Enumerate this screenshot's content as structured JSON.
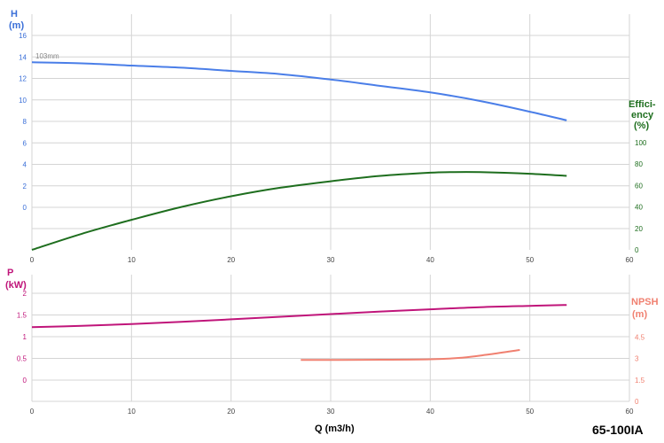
{
  "model_label": "65-100IA",
  "colors": {
    "head": "#4a7ee8",
    "efficiency": "#1e6e1e",
    "power": "#c0157a",
    "npsh": "#f08070",
    "grid": "#d4d4d4",
    "tick": "#444444"
  },
  "chart_data": [
    {
      "type": "line",
      "grid": true,
      "x_ticks": [
        "0",
        "10",
        "20",
        "30",
        "40",
        "50",
        "60"
      ],
      "xlim": [
        0,
        60
      ],
      "left_axis": {
        "label_line1": "H",
        "label_line2": "(m)",
        "ylim": [
          -4,
          16
        ],
        "ticks": [
          "0",
          "2",
          "4",
          "6",
          "8",
          "10",
          "12",
          "14",
          "16"
        ]
      },
      "right_axis": {
        "label_line1": "Effici-",
        "label_line2": "ency",
        "label_line3": "(%)",
        "ylim": [
          0,
          100
        ],
        "ticks": [
          "0",
          "20",
          "40",
          "60",
          "80",
          "100"
        ]
      },
      "annotation": "103mm",
      "series": [
        {
          "key": "head",
          "axis": "left",
          "x": [
            0,
            5,
            10,
            15,
            20,
            25,
            30,
            35,
            40,
            45,
            50,
            53.7
          ],
          "y": [
            13.5,
            13.4,
            13.2,
            13.0,
            12.7,
            12.4,
            11.9,
            11.3,
            10.7,
            9.9,
            8.9,
            8.1
          ]
        },
        {
          "key": "efficiency",
          "axis": "right",
          "x": [
            0,
            5,
            10,
            15,
            20,
            25,
            30,
            35,
            40,
            42,
            45,
            50,
            53.7
          ],
          "y": [
            0,
            15,
            28,
            40,
            50,
            58,
            64,
            69,
            72,
            72.5,
            72.5,
            71,
            69
          ]
        }
      ]
    },
    {
      "type": "line",
      "grid": true,
      "x_ticks": [
        "0",
        "10",
        "20",
        "30",
        "40",
        "50",
        "60"
      ],
      "xlim": [
        0,
        60
      ],
      "xlabel": "Q (m3/h)",
      "left_axis": {
        "label_line1": "P",
        "label_line2": "(kW)",
        "ylim": [
          -0.5,
          2.5
        ],
        "ticks": [
          "0",
          "0.5",
          "1",
          "1.5",
          "2"
        ]
      },
      "right_axis": {
        "label_line1": "NPSH",
        "label_line2": "(m)",
        "ylim": [
          0,
          7.5
        ],
        "ticks": [
          "0",
          "1.5",
          "3",
          "4.5"
        ]
      },
      "series": [
        {
          "key": "power",
          "axis": "left",
          "x": [
            0,
            5,
            10,
            15,
            20,
            25,
            30,
            35,
            40,
            45,
            50,
            53.7
          ],
          "y": [
            1.22,
            1.25,
            1.29,
            1.34,
            1.4,
            1.46,
            1.52,
            1.58,
            1.63,
            1.68,
            1.71,
            1.73
          ]
        },
        {
          "key": "npsh",
          "axis": "right",
          "x": [
            27,
            30,
            35,
            40,
            43,
            46,
            49
          ],
          "y": [
            2.9,
            2.9,
            2.92,
            2.95,
            3.05,
            3.3,
            3.6
          ]
        }
      ]
    }
  ]
}
